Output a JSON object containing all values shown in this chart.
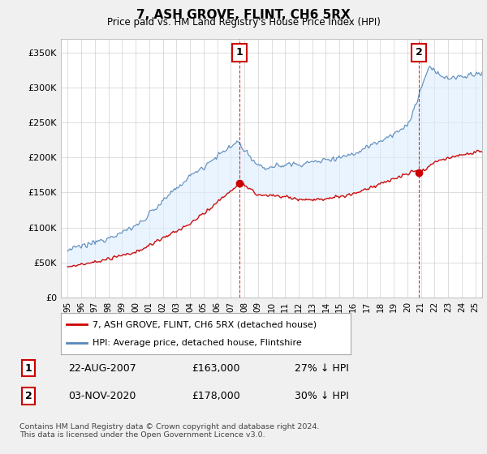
{
  "title": "7, ASH GROVE, FLINT, CH6 5RX",
  "subtitle": "Price paid vs. HM Land Registry's House Price Index (HPI)",
  "ylabel_ticks": [
    "£0",
    "£50K",
    "£100K",
    "£150K",
    "£200K",
    "£250K",
    "£300K",
    "£350K"
  ],
  "ytick_values": [
    0,
    50000,
    100000,
    150000,
    200000,
    250000,
    300000,
    350000
  ],
  "ylim": [
    0,
    370000
  ],
  "xlim_start": 1994.5,
  "xlim_end": 2025.5,
  "line1_label": "7, ASH GROVE, FLINT, CH6 5RX (detached house)",
  "line1_color": "#cc0000",
  "line2_label": "HPI: Average price, detached house, Flintshire",
  "line2_color": "#5588bb",
  "fill_color": "#ddeeff",
  "marker1_year": 2007.65,
  "marker1_price": 163000,
  "marker1_label": "1",
  "marker1_date": "22-AUG-2007",
  "marker1_price_str": "£163,000",
  "marker1_below": "27% ↓ HPI",
  "marker2_year": 2020.84,
  "marker2_price": 178000,
  "marker2_label": "2",
  "marker2_date": "03-NOV-2020",
  "marker2_price_str": "£178,000",
  "marker2_below": "30% ↓ HPI",
  "footnote": "Contains HM Land Registry data © Crown copyright and database right 2024.\nThis data is licensed under the Open Government Licence v3.0.",
  "bg_color": "#f0f0f0",
  "plot_bg_color": "#ffffff"
}
